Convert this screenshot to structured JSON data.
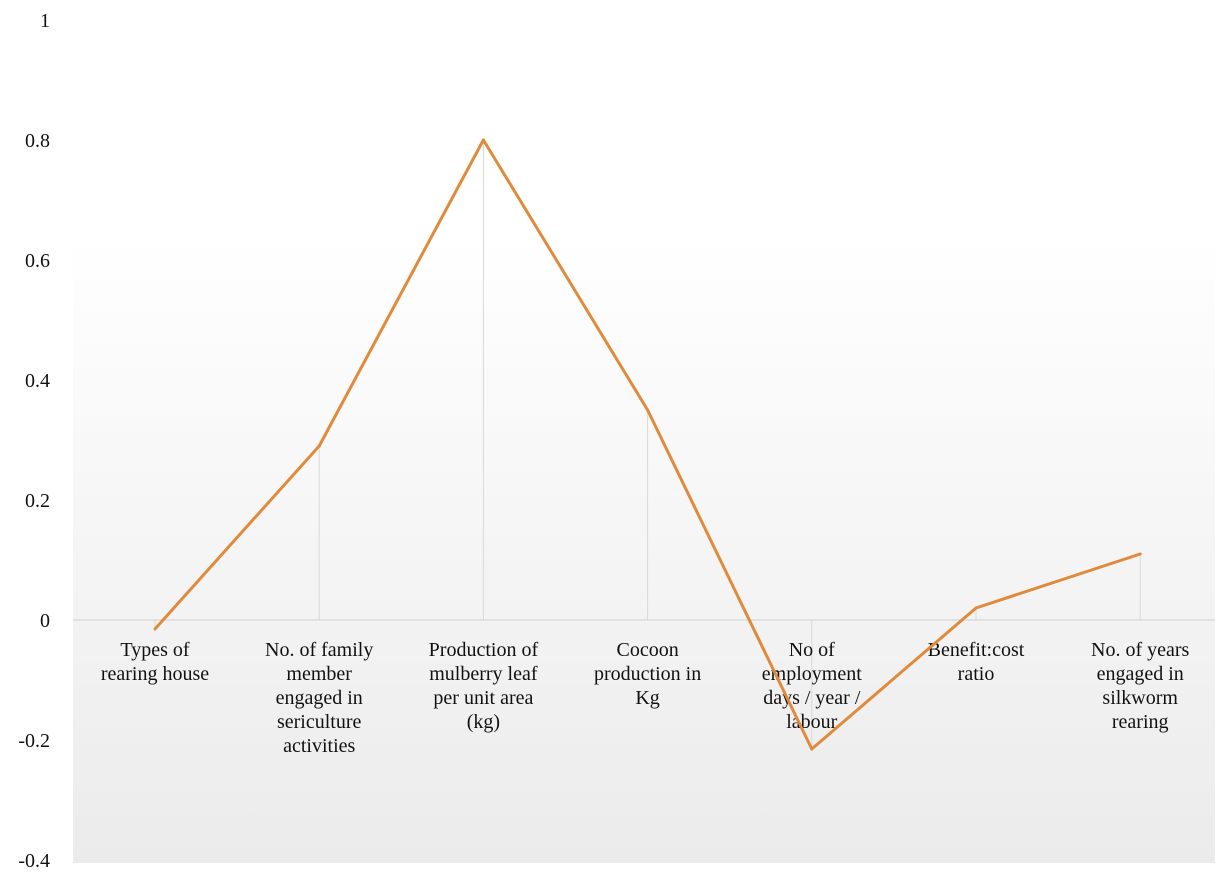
{
  "chart_data": {
    "type": "line",
    "categories": [
      [
        "Types  of",
        "rearing  house"
      ],
      [
        "No. of family",
        "member",
        "engaged  in",
        "sericulture",
        "activities"
      ],
      [
        "Production  of",
        "mulberry  leaf",
        "per unit  area",
        "(kg)"
      ],
      [
        "Cocoon",
        "production  in",
        "Kg"
      ],
      [
        "No of",
        "employment",
        "days  /  year  /",
        "labour"
      ],
      [
        "Benefit:cost",
        "ratio"
      ],
      [
        "No. of years",
        "engaged  in",
        "silkworm",
        "rearing"
      ]
    ],
    "series": [
      {
        "values": [
          -0.015,
          0.29,
          0.8,
          0.35,
          -0.215,
          0.02,
          0.11
        ],
        "color": "#E08A3C"
      }
    ],
    "ylim": [
      -0.4,
      1
    ],
    "yticks": [
      1,
      0.8,
      0.6,
      0.4,
      0.2,
      0,
      -0.2,
      -0.4
    ],
    "ytick_labels": [
      "1",
      "0.8",
      "0.6",
      "0.4",
      "0.2",
      "0",
      "-0.2",
      "-0.4"
    ],
    "grid": "vertical drop lines",
    "legend": "none",
    "background": "light grey gradient"
  }
}
